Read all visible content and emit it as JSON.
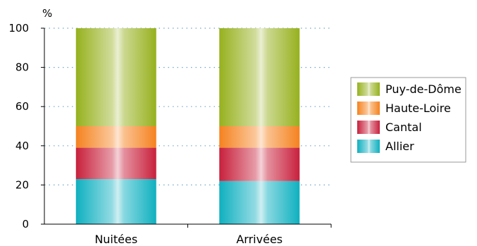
{
  "chart_data": {
    "type": "bar",
    "stacked": true,
    "unit_label": "%",
    "categories": [
      "Nuitées",
      "Arrivées"
    ],
    "series": [
      {
        "name": "Allier",
        "values": [
          23,
          22
        ],
        "color": "#0fb0c0"
      },
      {
        "name": "Cantal",
        "values": [
          16,
          17
        ],
        "color": "#c8203c"
      },
      {
        "name": "Haute-Loire",
        "values": [
          11,
          11
        ],
        "color": "#f5821f"
      },
      {
        "name": "Puy-de-Dôme",
        "values": [
          50,
          50
        ],
        "color": "#96b11e"
      }
    ],
    "yticks": [
      0,
      20,
      40,
      60,
      80,
      100
    ],
    "ylim": [
      0,
      100
    ],
    "grid": "dotted",
    "legend_position": "right"
  }
}
